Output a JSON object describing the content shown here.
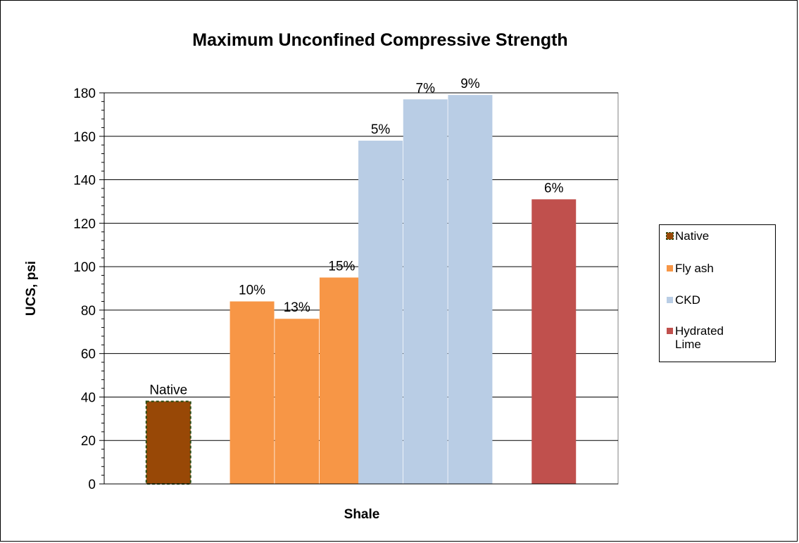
{
  "chart_data": {
    "type": "bar",
    "title": "Maximum Unconfined Compressive Strength",
    "xlabel": "Shale",
    "ylabel": "UCS, psi",
    "ylim": [
      0,
      180
    ],
    "ytick_step": 20,
    "grid": true,
    "legend_position": "right",
    "series": [
      {
        "name": "Native",
        "color": "#984806",
        "border": "dashed-dark-green",
        "bars": [
          {
            "label": "Native",
            "value": 38
          }
        ]
      },
      {
        "name": "Fly ash",
        "color": "#F79646",
        "bars": [
          {
            "label": "10%",
            "value": 84
          },
          {
            "label": "13%",
            "value": 76
          },
          {
            "label": "15%",
            "value": 95
          }
        ]
      },
      {
        "name": "CKD",
        "color": "#B9CDE5",
        "bars": [
          {
            "label": "5%",
            "value": 158
          },
          {
            "label": "7%",
            "value": 177
          },
          {
            "label": "9%",
            "value": 179
          }
        ]
      },
      {
        "name": "Hydrated Lime",
        "color": "#C0504D",
        "bars": [
          {
            "label": "6%",
            "value": 131
          }
        ]
      }
    ]
  }
}
